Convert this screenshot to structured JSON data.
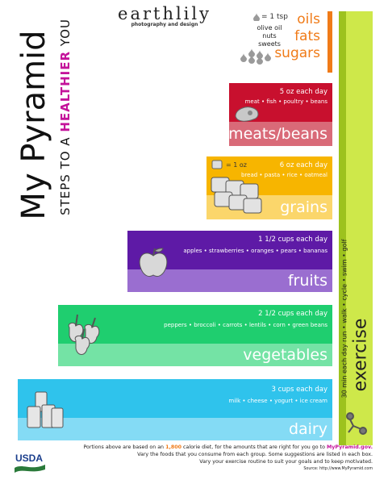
{
  "title": {
    "main": "My Pyramid",
    "sub_prefix": "STEPS TO A",
    "sub_highlight": "HEALTHIER",
    "sub_suffix": "YOU"
  },
  "logo": {
    "name": "earthlily",
    "tagline": "photography and design"
  },
  "oils": {
    "unit": "= 1 tsp",
    "items": [
      "olive oil",
      "nuts",
      "sweets"
    ],
    "words": [
      "oils",
      "fats",
      "sugars"
    ]
  },
  "groups": [
    {
      "key": "meats",
      "name": "meats/beans",
      "amount": "5 oz each day",
      "items": "meat • fish • poultry • beans",
      "top_color": "#c8102e",
      "bottom_color": "#d96a78"
    },
    {
      "key": "grains",
      "name": "grains",
      "unit": "= 1 oz",
      "amount": "6 oz each day",
      "items": "bread • pasta • rice • oatmeal",
      "top_color": "#f7b500",
      "bottom_color": "#fbd66b"
    },
    {
      "key": "fruits",
      "name": "fruits",
      "amount": "1 1/2 cups each day",
      "items": "apples • strawberries • oranges • pears • bananas",
      "top_color": "#5e1aa6",
      "bottom_color": "#9a6ed0"
    },
    {
      "key": "vegetables",
      "name": "vegetables",
      "amount": "2 1/2 cups each day",
      "items": "peppers • broccoli • carrots • lentils • corn • green beans",
      "top_color": "#1fce6f",
      "bottom_color": "#74e3a5"
    },
    {
      "key": "dairy",
      "name": "dairy",
      "amount": "3 cups each day",
      "items": "milk • cheese • yogurt • ice cream",
      "top_color": "#2fc3ec",
      "bottom_color": "#84dbf5"
    }
  ],
  "exercise": {
    "label": "exercise",
    "detail": "30 min each day run • walk • cycle • swim • golf",
    "color": "#cee84a",
    "strip_color": "#9dc21e"
  },
  "footer": {
    "line1_pre": "Portions above are based on an",
    "calories": "1,800",
    "line1_mid": "calorie diet, for the amounts that are right for you go to",
    "site": "MyPyramid.gov.",
    "line2": "Vary the foods that you consume from each group. Some suggestions are listed in each box.",
    "line3": "Vary your exercise routine to suit your goals and to keep motivated.",
    "source": "Source: http://www.MyPyramid.com"
  },
  "usda": {
    "label": "USDA"
  },
  "colors": {
    "accent_orange": "#f07b18",
    "accent_magenta": "#c4129a"
  }
}
